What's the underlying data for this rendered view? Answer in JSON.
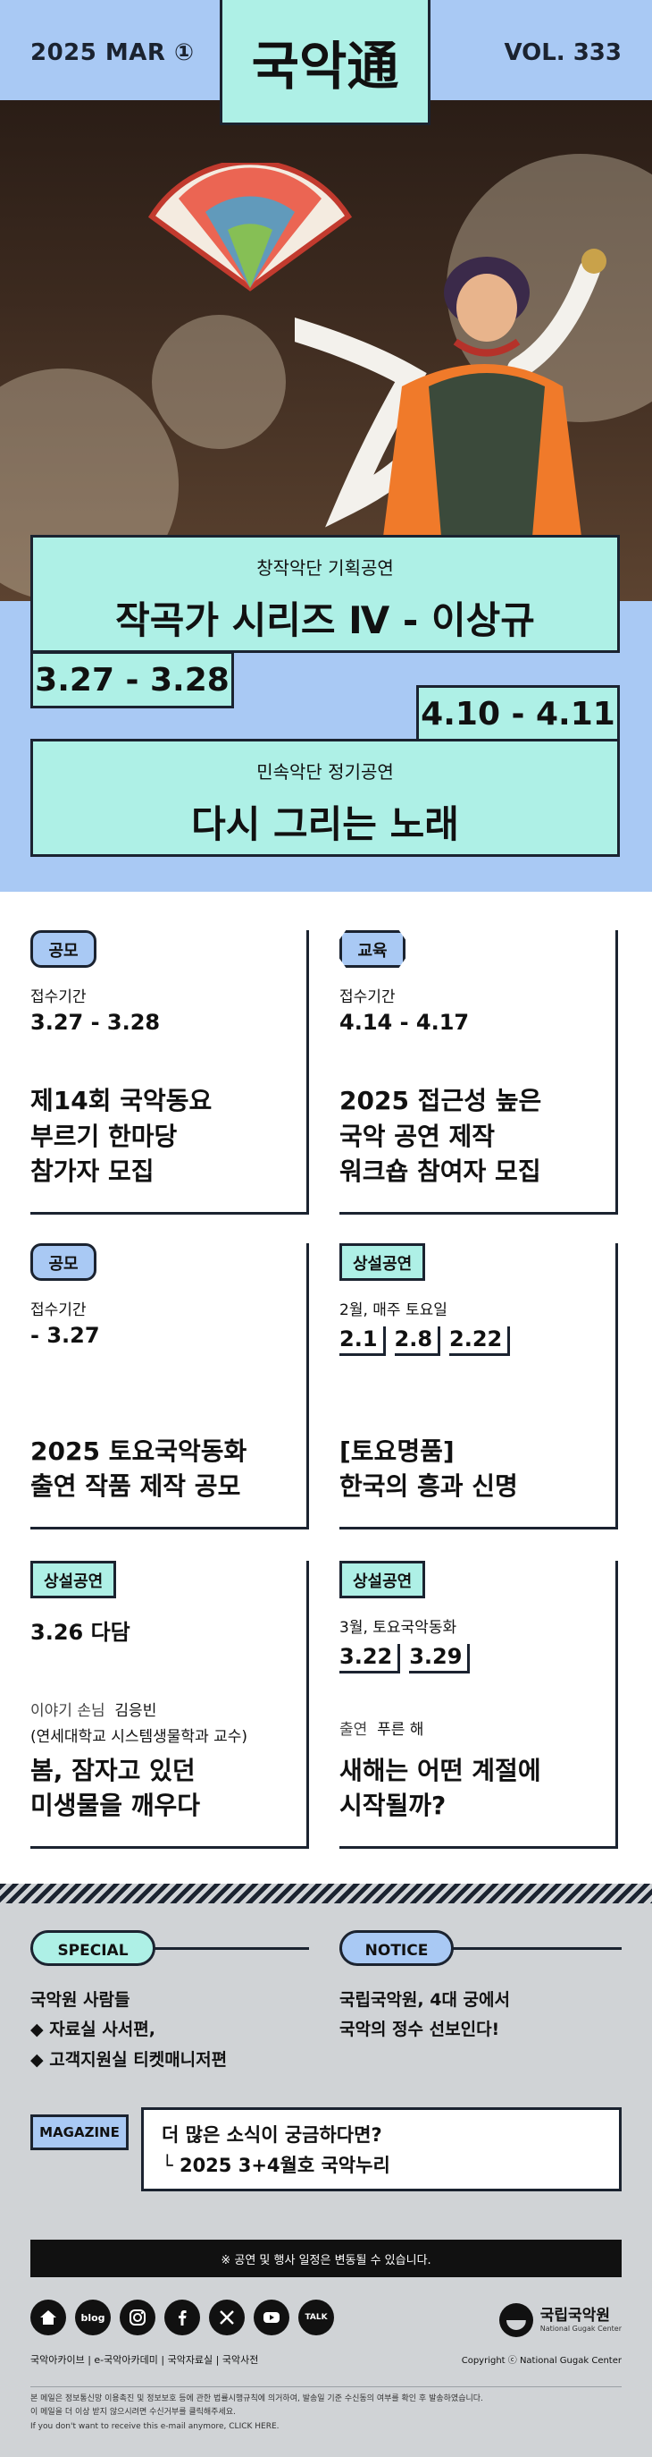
{
  "header": {
    "issue_date": "2025 MAR ①",
    "logo": "국악通",
    "volume": "VOL. 333"
  },
  "hero": {
    "card1": {
      "subtitle": "창작악단 기획공연",
      "title": "작곡가 시리즈 Ⅳ - 이상규",
      "date": "3.27 - 3.28"
    },
    "card2": {
      "subtitle": "민속악단 정기공연",
      "title": "다시 그리는 노래",
      "date": "4.10 - 4.11"
    }
  },
  "grid": [
    {
      "tag": "공모",
      "label": "접수기간",
      "dates": "3.27 - 3.28",
      "title_l1": "제14회 국악동요",
      "title_l2": "부르기 한마당",
      "title_l3": "참가자 모집"
    },
    {
      "tag": "교육",
      "label": "접수기간",
      "dates": "4.14 - 4.17",
      "title_l1": "2025 접근성 높은",
      "title_l2": "국악 공연 제작",
      "title_l3": "워크숍 참여자 모집"
    },
    {
      "tag": "공모",
      "label": "접수기간",
      "dates": "- 3.27",
      "title_l1": "2025 토요국악동화",
      "title_l2": "출연 작품 제작 공모"
    },
    {
      "tag": "상설공연",
      "label": "2월, 매주 토요일",
      "sched": [
        "2.1",
        "2.8",
        "2.22"
      ],
      "title_l1": "[토요명품]",
      "title_l2": "한국의 흥과 신명"
    },
    {
      "tag": "상설공연",
      "dates": "3.26 다담",
      "guest_label": "이야기 손님",
      "guest_name": "김응빈",
      "guest_aff": "(연세대학교 시스템생물학과 교수)",
      "title_l1": "봄, 잠자고 있던",
      "title_l2": "미생물을 깨우다"
    },
    {
      "tag": "상설공연",
      "label": "3월, 토요국악동화",
      "sched": [
        "3.22",
        "3.29"
      ],
      "cast_label": "출연",
      "cast_name": "푸른 해",
      "title_l1": "새해는 어떤 계절에",
      "title_l2": "시작될까?"
    }
  ],
  "footer": {
    "special": {
      "pill": "SPECIAL",
      "l1": "국악원 사람들",
      "l2": "◆ 자료실 사서편,",
      "l3": "◆ 고객지원실 티켓매니저편"
    },
    "notice": {
      "pill": "NOTICE",
      "l1": "국립국악원, 4대 궁에서",
      "l2": "국악의 정수 선보인다!"
    },
    "magazine": {
      "tag": "MAGAZINE",
      "l1": "더 많은 소식이 궁금하다면?",
      "l2": "└  2025 3+4월호 국악누리"
    },
    "notice_bar": "※ 공연 및 행사 일정은 변동될 수 있습니다.",
    "icons": [
      "home-icon",
      "blog-icon",
      "instagram-icon",
      "facebook-icon",
      "x-icon",
      "youtube-icon",
      "talk-icon"
    ],
    "icon_labels": {
      "blog": "blog",
      "talk": "TALK"
    },
    "links": "국악아카이브  |  e-국악아카데미  |  국악자료실  |  국악사전",
    "brand": {
      "name": "국립국악원",
      "en": "National Gugak Center"
    },
    "copyright": "Copyright ⓒ National Gugak Center",
    "fine1": "본 메일은 정보통신망 이용촉진 및 정보보호 등에 관한 법률시행규칙에 의거하여, 발송일 기준 수신동의 여부를 확인 후 발송하였습니다.",
    "fine2": "이 메일을 더 이상 받지 않으시려면 수신거부를 클릭해주세요.",
    "fine3": "If you don't want to receive this e-mail anymore, CLICK HERE."
  },
  "colors": {
    "blue": "#a9c9f4",
    "mint": "#aef0e6",
    "ink": "#1b2330",
    "gray": "#d0d3d6"
  }
}
